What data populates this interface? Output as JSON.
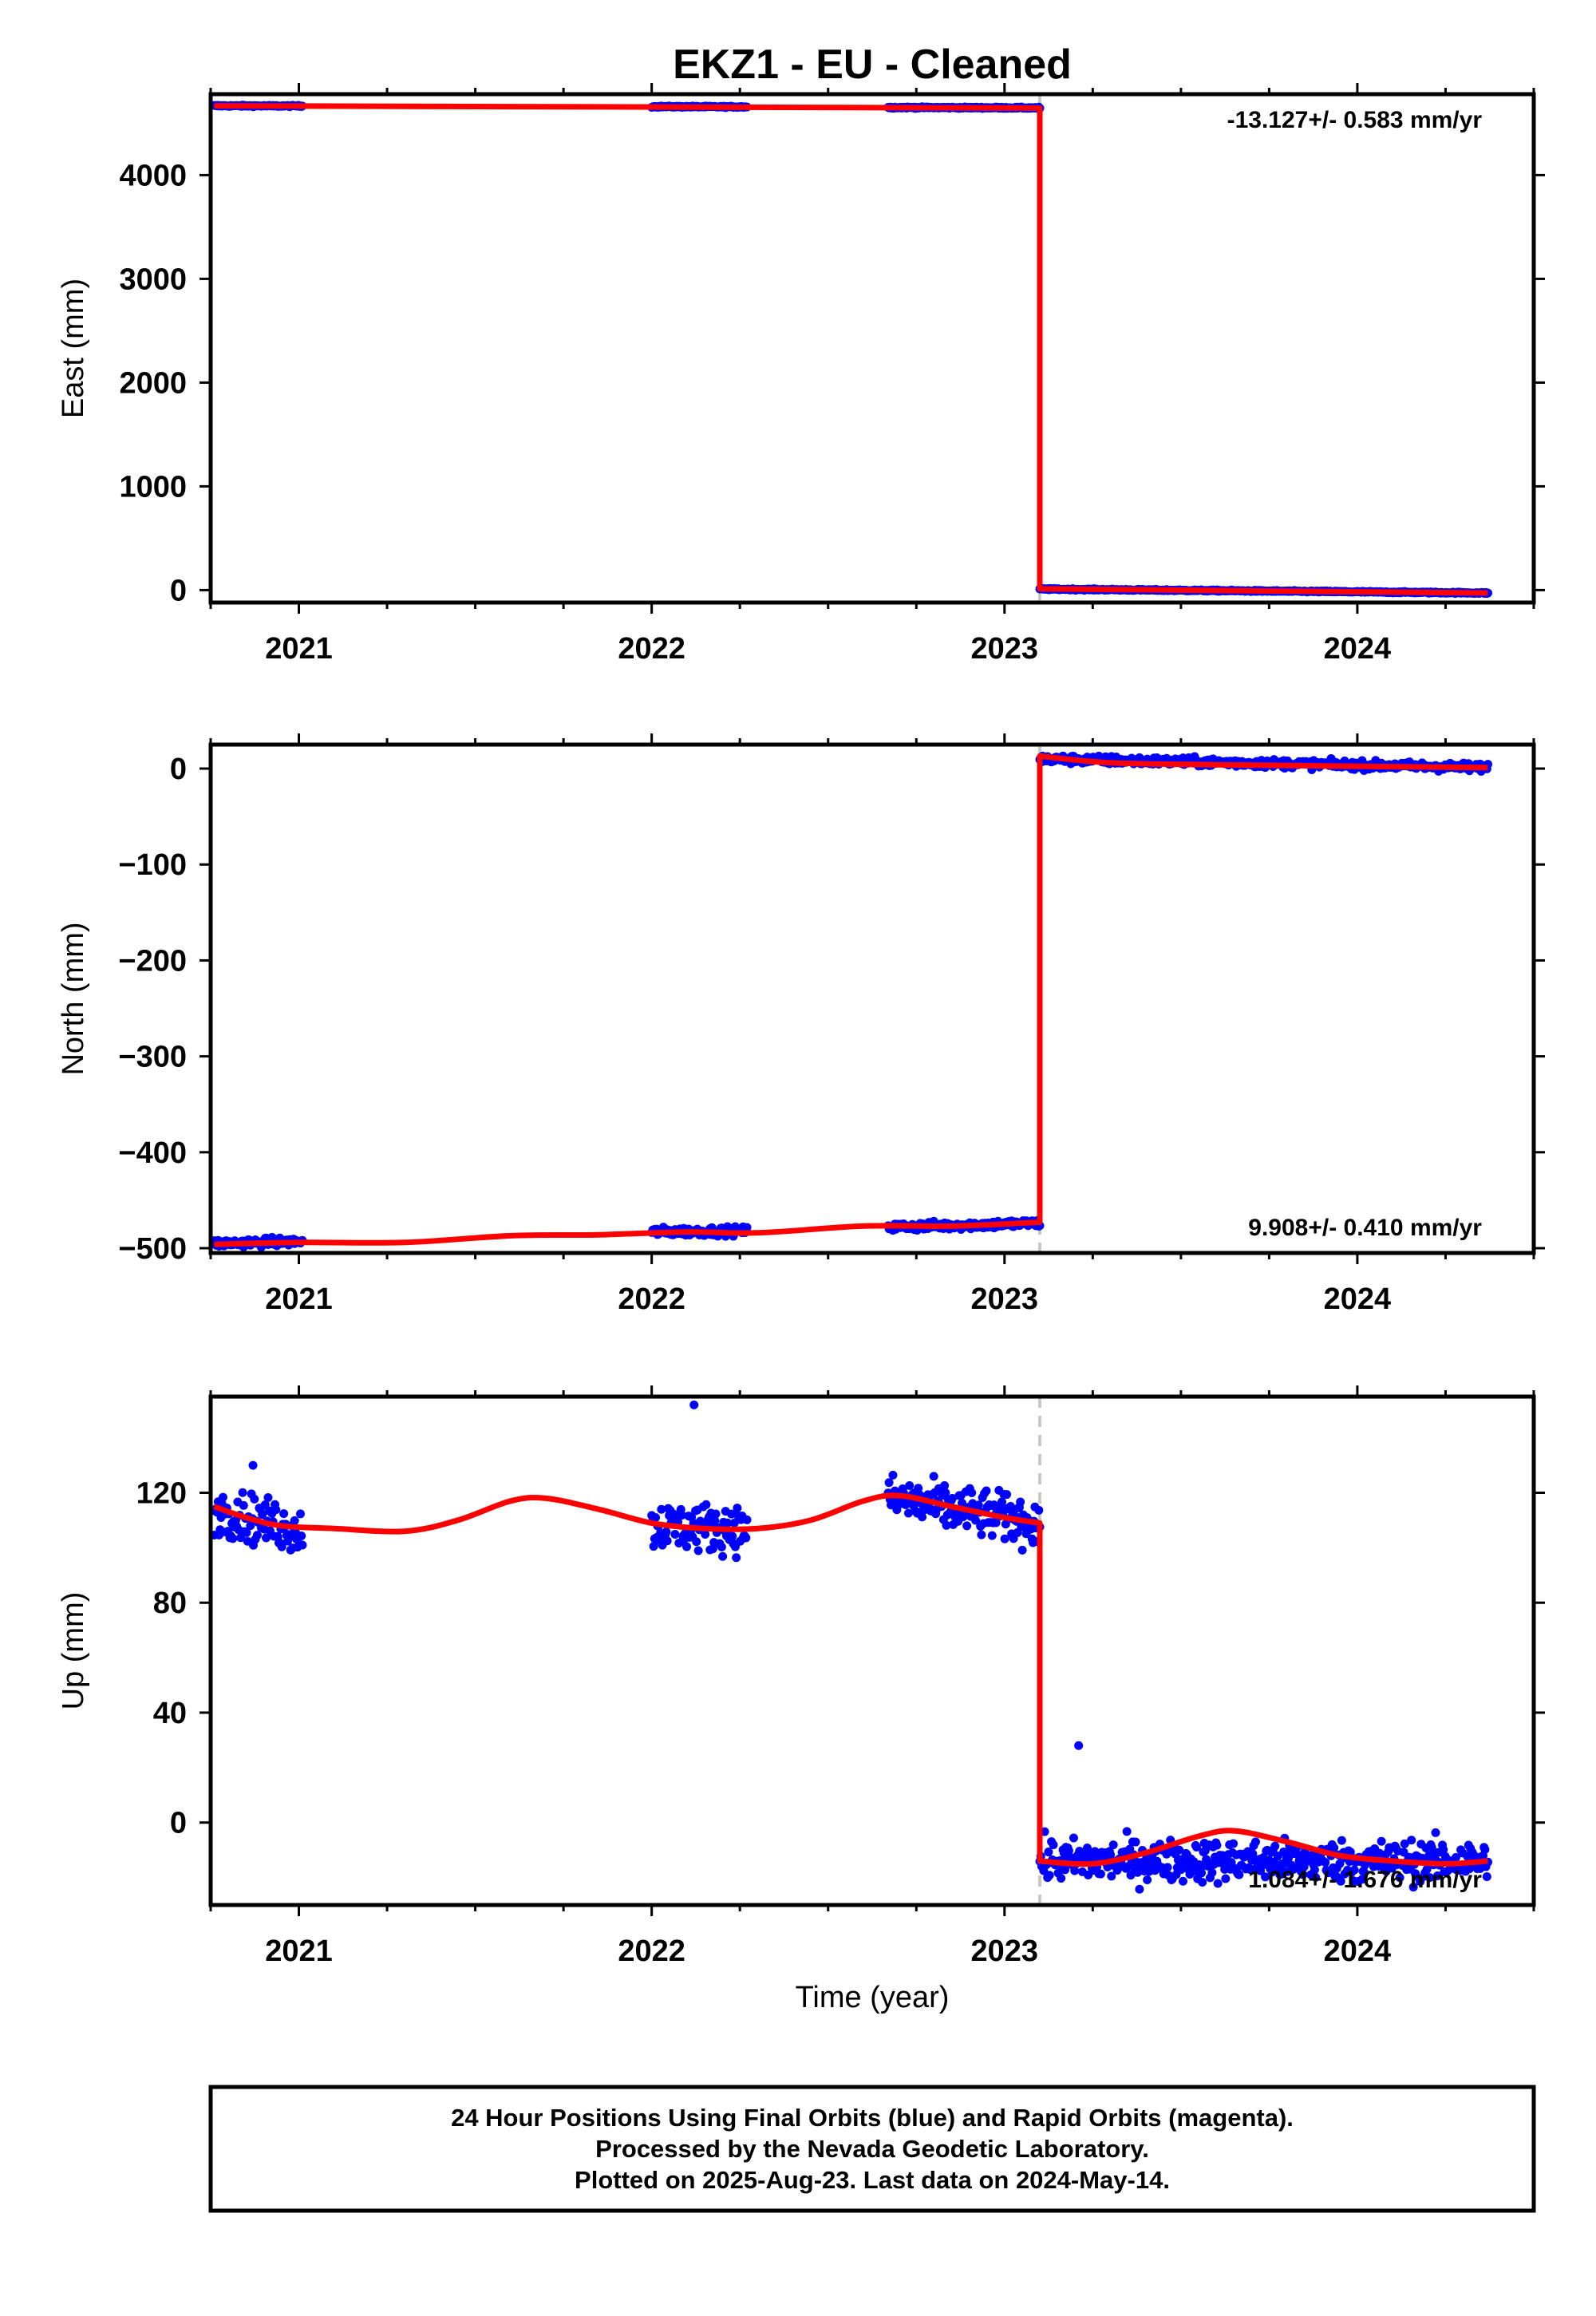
{
  "title": "EKZ1  - EU - Cleaned",
  "footer": {
    "line1": "24 Hour Positions Using Final Orbits (blue) and Rapid Orbits (magenta).",
    "line2": "Processed by the Nevada Geodetic Laboratory.",
    "line3": "Plotted on 2025-Aug-23. Last data on 2024-May-14."
  },
  "colors": {
    "data_points": "#0000ff",
    "model_fit": "#ff0000",
    "offset_marker": "#c8c8c8",
    "frame": "#000000"
  },
  "chart_data": [
    {
      "type": "scatter",
      "name": "east",
      "ylabel": "East (mm)",
      "xlabel": "",
      "xlim": [
        2020.75,
        2024.5
      ],
      "ylim": [
        -120,
        4780
      ],
      "x_ticks": [
        2021,
        2022,
        2023,
        2024
      ],
      "x_tick_labels": [
        "2021",
        "2022",
        "2023",
        "2024"
      ],
      "y_ticks": [
        0,
        1000,
        2000,
        3000,
        4000
      ],
      "y_tick_labels": [
        "0",
        "1000",
        "2000",
        "3000",
        "4000"
      ],
      "rate_annotation": "-13.127+/- 0.583 mm/yr",
      "rate_position": "top-right",
      "offset_epoch": 2023.1,
      "data_segments": [
        {
          "x": [
            2020.76,
            2021.01
          ],
          "y": [
            4668,
            4666
          ],
          "spread": 6
        },
        {
          "x": [
            2022.0,
            2022.27
          ],
          "y": [
            4660,
            4658
          ],
          "spread": 6
        },
        {
          "x": [
            2022.67,
            2023.1
          ],
          "y": [
            4652,
            4648
          ],
          "spread": 6
        },
        {
          "x": [
            2023.1,
            2024.37
          ],
          "y": [
            10,
            -28
          ],
          "spread": 6
        }
      ],
      "model": [
        [
          2020.76,
          4668
        ],
        [
          2023.1,
          4646
        ],
        [
          2023.1,
          12
        ],
        [
          2024.37,
          -28
        ]
      ]
    },
    {
      "type": "scatter",
      "name": "north",
      "ylabel": "North (mm)",
      "xlabel": "",
      "xlim": [
        2020.75,
        2024.5
      ],
      "ylim": [
        -505,
        25
      ],
      "x_ticks": [
        2021,
        2022,
        2023,
        2024
      ],
      "x_tick_labels": [
        "2021",
        "2022",
        "2023",
        "2024"
      ],
      "y_ticks": [
        -500,
        -400,
        -300,
        -200,
        -100,
        0
      ],
      "y_tick_labels": [
        "−500",
        "−400",
        "−300",
        "−200",
        "−100",
        "0"
      ],
      "rate_annotation": "9.908+/- 0.410 mm/yr",
      "rate_position": "bottom-right",
      "offset_epoch": 2023.1,
      "data_segments": [
        {
          "x": [
            2020.76,
            2021.01
          ],
          "y": [
            -495,
            -493
          ],
          "spread": 4
        },
        {
          "x": [
            2022.0,
            2022.27
          ],
          "y": [
            -483,
            -482
          ],
          "spread": 4
        },
        {
          "x": [
            2022.67,
            2023.1
          ],
          "y": [
            -478,
            -474
          ],
          "spread": 4
        },
        {
          "x": [
            2023.1,
            2024.37
          ],
          "y": [
            10,
            1
          ],
          "spread": 4
        }
      ],
      "model": [
        [
          2020.76,
          -496
        ],
        [
          2021.0,
          -494
        ],
        [
          2021.3,
          -494
        ],
        [
          2021.6,
          -487
        ],
        [
          2021.85,
          -486
        ],
        [
          2022.1,
          -483
        ],
        [
          2022.3,
          -484
        ],
        [
          2022.6,
          -477
        ],
        [
          2022.85,
          -477
        ],
        [
          2023.1,
          -473
        ],
        [
          2023.1,
          13
        ],
        [
          2023.3,
          6
        ],
        [
          2023.6,
          4
        ],
        [
          2023.85,
          3
        ],
        [
          2024.1,
          2
        ],
        [
          2024.37,
          1
        ]
      ]
    },
    {
      "type": "scatter",
      "name": "up",
      "ylabel": "Up (mm)",
      "xlabel": "Time (year)",
      "xlim": [
        2020.75,
        2024.5
      ],
      "ylim": [
        -30,
        155
      ],
      "x_ticks": [
        2021,
        2022,
        2023,
        2024
      ],
      "x_tick_labels": [
        "2021",
        "2022",
        "2023",
        "2024"
      ],
      "y_ticks": [
        0,
        40,
        80,
        120
      ],
      "y_tick_labels": [
        "0",
        "40",
        "80",
        "120"
      ],
      "rate_annotation": "1.084+/- 1.676 mm/yr",
      "rate_position": "bottom-right",
      "offset_epoch": 2023.1,
      "data_segments": [
        {
          "x": [
            2020.76,
            2021.01
          ],
          "y": [
            114,
            106
          ],
          "spread": 8
        },
        {
          "x": [
            2022.0,
            2022.27
          ],
          "y": [
            108,
            107
          ],
          "spread": 8
        },
        {
          "x": [
            2022.67,
            2023.1
          ],
          "y": [
            118,
            109
          ],
          "spread": 8
        },
        {
          "x": [
            2023.1,
            2024.37
          ],
          "y": [
            -14,
            -14
          ],
          "spread": 7
        }
      ],
      "outliers": [
        [
          2022.12,
          152
        ],
        [
          2020.87,
          130
        ],
        [
          2023.21,
          28
        ]
      ],
      "model": [
        [
          2020.76,
          115
        ],
        [
          2020.85,
          111
        ],
        [
          2020.95,
          108
        ],
        [
          2021.1,
          107
        ],
        [
          2021.3,
          106
        ],
        [
          2021.45,
          110
        ],
        [
          2021.6,
          117
        ],
        [
          2021.7,
          118
        ],
        [
          2021.85,
          114
        ],
        [
          2022.0,
          109
        ],
        [
          2022.15,
          107
        ],
        [
          2022.3,
          107
        ],
        [
          2022.45,
          110
        ],
        [
          2022.6,
          117
        ],
        [
          2022.7,
          119
        ],
        [
          2022.85,
          115
        ],
        [
          2023.0,
          111
        ],
        [
          2023.1,
          109
        ],
        [
          2023.1,
          -14
        ],
        [
          2023.25,
          -15
        ],
        [
          2023.4,
          -11
        ],
        [
          2023.55,
          -5
        ],
        [
          2023.65,
          -3
        ],
        [
          2023.8,
          -7
        ],
        [
          2023.95,
          -12
        ],
        [
          2024.1,
          -14
        ],
        [
          2024.25,
          -15
        ],
        [
          2024.37,
          -14
        ]
      ]
    }
  ]
}
